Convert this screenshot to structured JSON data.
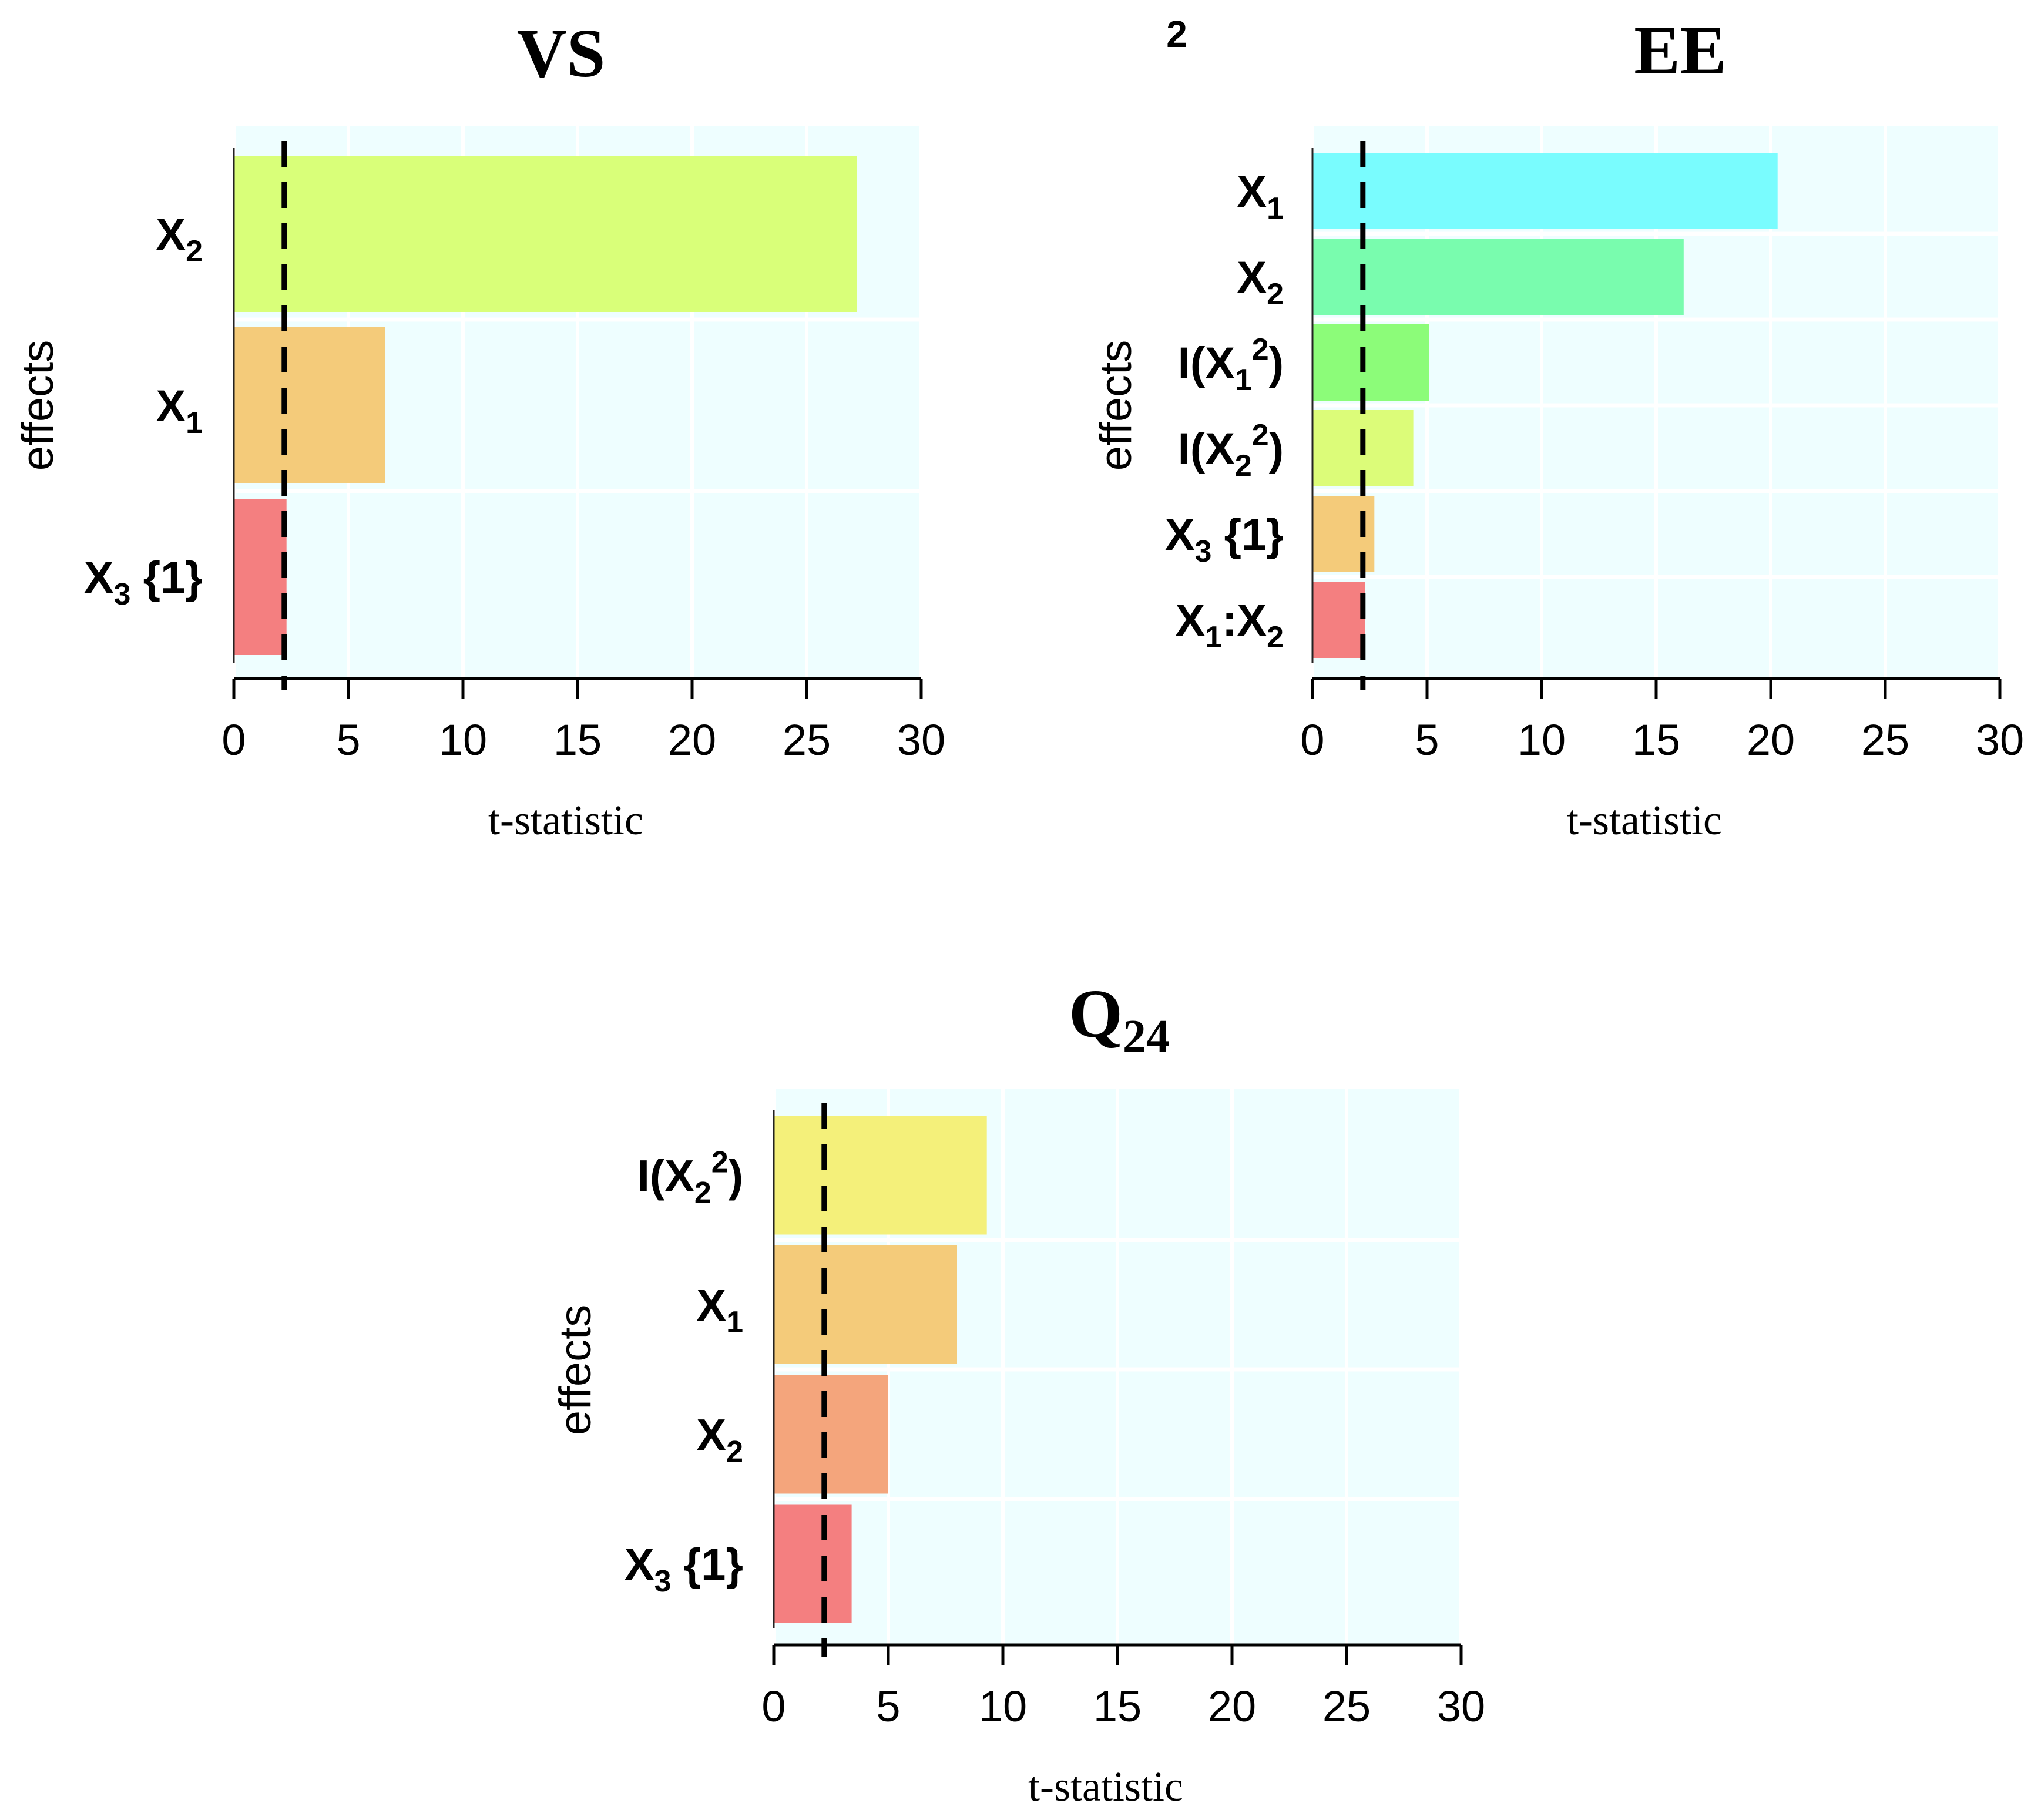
{
  "stray_label": "2",
  "chart_data": [
    {
      "type": "bar",
      "orientation": "horizontal",
      "title": "VS",
      "xlabel": "t-statistic",
      "ylabel": "effects",
      "xlim": [
        0,
        30
      ],
      "xticks": [
        "0",
        "5",
        "10",
        "15",
        "20",
        "25",
        "30"
      ],
      "grid": true,
      "reference_line": 2.2,
      "bars": [
        {
          "label": [
            {
              "t": "X"
            },
            {
              "t": "2",
              "sub": true
            }
          ],
          "value": 27.2,
          "color": "#d9ff79"
        },
        {
          "label": [
            {
              "t": "X"
            },
            {
              "t": "1",
              "sub": true
            }
          ],
          "value": 6.6,
          "color": "#f4cb7a"
        },
        {
          "label": [
            {
              "t": "X"
            },
            {
              "t": "3",
              "sub": true
            },
            {
              "t": " {1}"
            }
          ],
          "value": 2.3,
          "color": "#f47f80"
        }
      ]
    },
    {
      "type": "bar",
      "orientation": "horizontal",
      "title": "EE",
      "xlabel": "t-statistic",
      "ylabel": "effects",
      "xlim": [
        0,
        30
      ],
      "xticks": [
        "0",
        "5",
        "10",
        "15",
        "20",
        "25",
        "30"
      ],
      "grid": true,
      "reference_line": 2.2,
      "bars": [
        {
          "label": [
            {
              "t": "X"
            },
            {
              "t": "1",
              "sub": true
            }
          ],
          "value": 20.3,
          "color": "#79fcfe"
        },
        {
          "label": [
            {
              "t": "X"
            },
            {
              "t": "2",
              "sub": true
            }
          ],
          "value": 16.2,
          "color": "#79fcae"
        },
        {
          "label": [
            {
              "t": "I(X"
            },
            {
              "t": "1",
              "sub": true
            },
            {
              "t": "2",
              "sup": true
            },
            {
              "t": ")"
            }
          ],
          "value": 5.1,
          "color": "#8cfc79"
        },
        {
          "label": [
            {
              "t": "I(X"
            },
            {
              "t": "2",
              "sub": true
            },
            {
              "t": "2",
              "sup": true
            },
            {
              "t": ")"
            }
          ],
          "value": 4.4,
          "color": "#dcfc79"
        },
        {
          "label": [
            {
              "t": "X"
            },
            {
              "t": "3",
              "sub": true
            },
            {
              "t": " {1}"
            }
          ],
          "value": 2.7,
          "color": "#f4cb7a"
        },
        {
          "label": [
            {
              "t": "X"
            },
            {
              "t": "1",
              "sub": true
            },
            {
              "t": ":X"
            },
            {
              "t": "2",
              "sub": true
            }
          ],
          "value": 2.3,
          "color": "#f47f80"
        }
      ]
    },
    {
      "type": "bar",
      "orientation": "horizontal",
      "title": "Q",
      "title_subscript": "24",
      "xlabel": "t-statistic",
      "ylabel": "effects",
      "xlim": [
        0,
        30
      ],
      "xticks": [
        "0",
        "5",
        "10",
        "15",
        "20",
        "25",
        "30"
      ],
      "grid": true,
      "reference_line": 2.2,
      "bars": [
        {
          "label": [
            {
              "t": "I(X"
            },
            {
              "t": "2",
              "sub": true
            },
            {
              "t": "2",
              "sup": true
            },
            {
              "t": ")"
            }
          ],
          "value": 9.3,
          "color": "#f4f07a"
        },
        {
          "label": [
            {
              "t": "X"
            },
            {
              "t": "1",
              "sub": true
            }
          ],
          "value": 8.0,
          "color": "#f4cb7a"
        },
        {
          "label": [
            {
              "t": "X"
            },
            {
              "t": "2",
              "sub": true
            }
          ],
          "value": 5.0,
          "color": "#f4a57c"
        },
        {
          "label": [
            {
              "t": "X"
            },
            {
              "t": "3",
              "sub": true
            },
            {
              "t": " {1}"
            }
          ],
          "value": 3.4,
          "color": "#f47f80"
        }
      ]
    }
  ]
}
